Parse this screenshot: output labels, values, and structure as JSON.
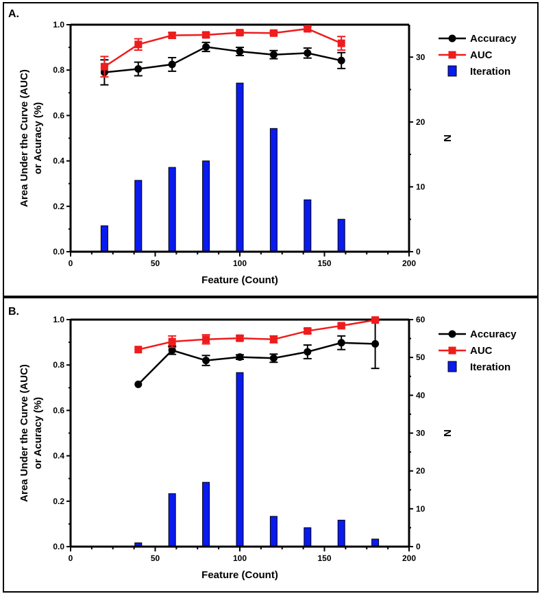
{
  "colors": {
    "accuracy": "#000000",
    "auc": "#ee1c1c",
    "iteration": "#0a1bef",
    "iteration_outline": "#000000"
  },
  "chart_data": [
    {
      "type": "bar",
      "panel_label": "A.",
      "xlabel": "Feature (Count)",
      "ylabel_line1": "Area Under the Curve  (AUC)",
      "ylabel_line2": "or Acuracy (%)",
      "y2label": "N",
      "xlim": [
        0,
        200
      ],
      "ylim": [
        0,
        1.0
      ],
      "y2lim": [
        0,
        35
      ],
      "x_ticks": [
        0,
        50,
        100,
        150,
        200
      ],
      "y_ticks": [
        0.0,
        0.2,
        0.4,
        0.6,
        0.8,
        1.0
      ],
      "y_tick_labels": [
        "0.0",
        "0.2",
        "0.4",
        "0.6",
        "0.8",
        "1.0"
      ],
      "y2_ticks": [
        0,
        10,
        20,
        30
      ],
      "legend_position": "top-right",
      "series": [
        {
          "name": "Accuracy",
          "kind": "line",
          "marker": "circle",
          "x": [
            20,
            40,
            60,
            80,
            100,
            120,
            140,
            160
          ],
          "y": [
            0.79,
            0.805,
            0.825,
            0.902,
            0.882,
            0.868,
            0.875,
            0.842
          ],
          "err": [
            0.055,
            0.03,
            0.03,
            0.02,
            0.018,
            0.018,
            0.022,
            0.035
          ]
        },
        {
          "name": "AUC",
          "kind": "line",
          "marker": "square",
          "x": [
            20,
            40,
            60,
            80,
            100,
            120,
            140,
            160
          ],
          "y": [
            0.815,
            0.913,
            0.953,
            0.955,
            0.965,
            0.963,
            0.982,
            0.918
          ],
          "err": [
            0.045,
            0.025,
            0.012,
            0.01,
            0.008,
            0.008,
            0.01,
            0.03
          ]
        },
        {
          "name": "Iteration",
          "kind": "bar",
          "axis": "right",
          "x": [
            20,
            40,
            60,
            80,
            100,
            120,
            140,
            160
          ],
          "y": [
            4,
            11,
            13,
            14,
            26,
            19,
            8,
            5
          ]
        }
      ]
    },
    {
      "type": "bar",
      "panel_label": "B.",
      "xlabel": "Feature (Count)",
      "ylabel_line1": "Area Under the Curve  (AUC)",
      "ylabel_line2": "or Acuracy (%)",
      "y2label": "N",
      "xlim": [
        0,
        200
      ],
      "ylim": [
        0,
        1.0
      ],
      "y2lim": [
        0,
        60
      ],
      "x_ticks": [
        0,
        50,
        100,
        150,
        200
      ],
      "y_ticks": [
        0.0,
        0.2,
        0.4,
        0.6,
        0.8,
        1.0
      ],
      "y_tick_labels": [
        "0.0",
        "0.2",
        "0.4",
        "0.6",
        "0.8",
        "1.0"
      ],
      "y2_ticks": [
        0,
        10,
        20,
        30,
        40,
        50,
        60
      ],
      "legend_position": "top-right",
      "series": [
        {
          "name": "Accuracy",
          "kind": "line",
          "marker": "circle",
          "x": [
            40,
            60,
            80,
            100,
            120,
            140,
            160,
            180
          ],
          "y": [
            0.715,
            0.865,
            0.82,
            0.835,
            0.83,
            0.858,
            0.898,
            0.893
          ],
          "err": [
            0,
            0.018,
            0.022,
            0.01,
            0.018,
            0.03,
            0.03,
            0.108
          ]
        },
        {
          "name": "AUC",
          "kind": "line",
          "marker": "square",
          "x": [
            40,
            60,
            80,
            100,
            120,
            140,
            160,
            180
          ],
          "y": [
            0.868,
            0.903,
            0.913,
            0.918,
            0.913,
            0.95,
            0.973,
            0.998
          ],
          "err": [
            0,
            0.025,
            0.02,
            0.01,
            0.015,
            0.01,
            0.008,
            0.005
          ]
        },
        {
          "name": "Iteration",
          "kind": "bar",
          "axis": "right",
          "x": [
            40,
            60,
            80,
            100,
            120,
            140,
            160,
            180
          ],
          "y": [
            1,
            14,
            17,
            46,
            8,
            5,
            7,
            2
          ]
        }
      ]
    }
  ]
}
